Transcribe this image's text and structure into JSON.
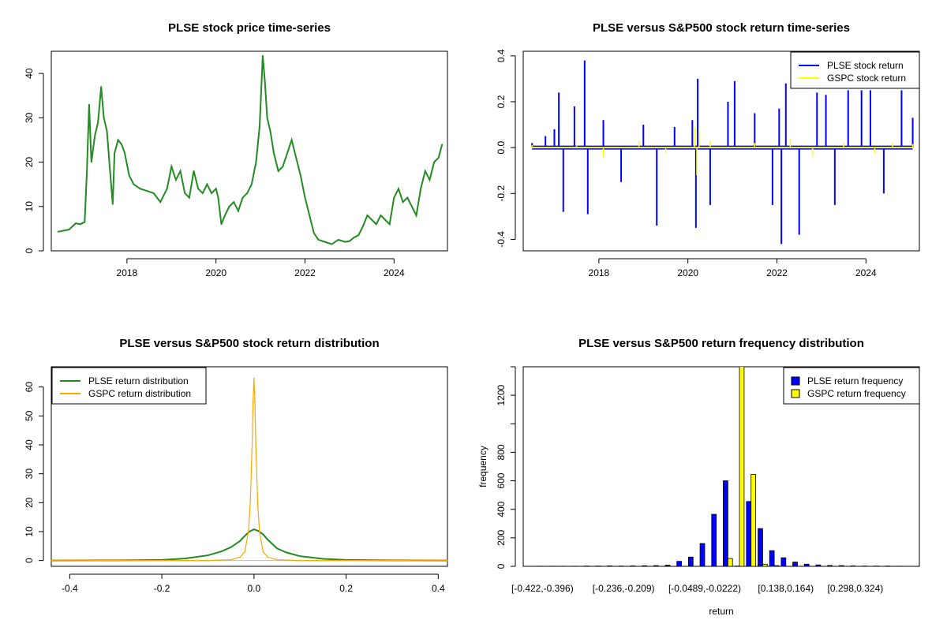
{
  "colors": {
    "price_line": "#228B22",
    "plse": "#0000FF",
    "gspc": "#FFFF00",
    "gspc_density": "#FFA500",
    "plse_density": "#228B22",
    "axis": "#000000"
  },
  "chart_data": [
    {
      "type": "line",
      "title": "PLSE stock price time-series",
      "xlabel": "",
      "ylabel": "",
      "xlim": [
        2016.3,
        2025.2
      ],
      "ylim": [
        0,
        45
      ],
      "x_ticks": [
        2018,
        2020,
        2022,
        2024
      ],
      "x_tick_labels": [
        "2018",
        "2020",
        "2022",
        "2024"
      ],
      "y_ticks": [
        0,
        10,
        20,
        30,
        40
      ],
      "y_tick_labels": [
        "0",
        "10",
        "20",
        "30",
        "40"
      ],
      "series": [
        {
          "color": "#228B22",
          "x": [
            2016.45,
            2016.7,
            2016.85,
            2016.95,
            2017.05,
            2017.1,
            2017.15,
            2017.2,
            2017.28,
            2017.35,
            2017.42,
            2017.48,
            2017.55,
            2017.62,
            2017.68,
            2017.72,
            2017.8,
            2017.88,
            2017.95,
            2018.05,
            2018.15,
            2018.3,
            2018.45,
            2018.6,
            2018.75,
            2018.9,
            2019.0,
            2019.1,
            2019.2,
            2019.3,
            2019.4,
            2019.5,
            2019.6,
            2019.7,
            2019.8,
            2019.9,
            2020.0,
            2020.05,
            2020.12,
            2020.2,
            2020.3,
            2020.4,
            2020.5,
            2020.6,
            2020.7,
            2020.8,
            2020.9,
            2020.98,
            2021.05,
            2021.1,
            2021.15,
            2021.22,
            2021.3,
            2021.4,
            2021.5,
            2021.6,
            2021.7,
            2021.8,
            2021.9,
            2022.0,
            2022.1,
            2022.2,
            2022.3,
            2022.45,
            2022.6,
            2022.75,
            2022.9,
            2023.0,
            2023.1,
            2023.2,
            2023.3,
            2023.4,
            2023.5,
            2023.6,
            2023.7,
            2023.8,
            2023.9,
            2024.0,
            2024.1,
            2024.2,
            2024.3,
            2024.4,
            2024.5,
            2024.6,
            2024.7,
            2024.8,
            2024.9,
            2025.0,
            2025.08
          ],
          "y": [
            4.3,
            4.8,
            6.2,
            6.0,
            6.5,
            18,
            33,
            20,
            26,
            29,
            37,
            30,
            27,
            18,
            10.5,
            22,
            25,
            24,
            22,
            17,
            15,
            14,
            13.5,
            13,
            11,
            14,
            19,
            16,
            18,
            13,
            12,
            18,
            14,
            13,
            15,
            13,
            14,
            12,
            6,
            8,
            10,
            11,
            9,
            12,
            13,
            15,
            20,
            28,
            44,
            38,
            30,
            27,
            22,
            18,
            19,
            22,
            25,
            21,
            17,
            12,
            8,
            4,
            2.5,
            2.0,
            1.5,
            2.5,
            2.0,
            2.2,
            3.0,
            3.5,
            5.5,
            8,
            7,
            6,
            8,
            7,
            6,
            12,
            14,
            11,
            12,
            10,
            8,
            14,
            18,
            16,
            20,
            21,
            24
          ]
        }
      ]
    },
    {
      "type": "line",
      "title": "PLSE versus S&P500 stock return time-series",
      "xlabel": "",
      "ylabel": "",
      "xlim": [
        2016.3,
        2025.2
      ],
      "ylim": [
        -0.45,
        0.42
      ],
      "x_ticks": [
        2018,
        2020,
        2022,
        2024
      ],
      "x_tick_labels": [
        "2018",
        "2020",
        "2022",
        "2024"
      ],
      "y_ticks": [
        -0.4,
        -0.2,
        0.0,
        0.2,
        0.4
      ],
      "y_tick_labels": [
        "-0.4",
        "-0.2",
        "0.0",
        "0.2",
        "0.4"
      ],
      "legend": "top-right",
      "series": [
        {
          "name": "PLSE stock return",
          "color": "#0000FF",
          "x": [
            2016.5,
            2016.8,
            2017.0,
            2017.1,
            2017.2,
            2017.45,
            2017.68,
            2017.75,
            2018.1,
            2018.5,
            2019.0,
            2019.3,
            2019.7,
            2020.1,
            2020.18,
            2020.22,
            2020.5,
            2020.9,
            2021.05,
            2021.5,
            2021.9,
            2022.05,
            2022.1,
            2022.2,
            2022.5,
            2022.9,
            2023.1,
            2023.3,
            2023.6,
            2023.9,
            2024.1,
            2024.4,
            2024.8,
            2025.05
          ],
          "y": [
            0.02,
            0.05,
            0.08,
            0.24,
            -0.28,
            0.18,
            0.38,
            -0.29,
            0.12,
            -0.15,
            0.1,
            -0.34,
            0.09,
            0.12,
            -0.35,
            0.3,
            -0.25,
            0.2,
            0.29,
            0.15,
            -0.25,
            0.17,
            -0.42,
            0.28,
            -0.38,
            0.24,
            0.23,
            -0.25,
            0.25,
            0.25,
            0.25,
            -0.2,
            0.25,
            0.13
          ]
        },
        {
          "name": "GSPC stock return",
          "color": "#FFFF00",
          "x": [
            2016.5,
            2017.5,
            2018.1,
            2018.9,
            2019.5,
            2020.15,
            2020.2,
            2020.25,
            2020.5,
            2021.5,
            2022.3,
            2022.8,
            2023.5,
            2024.2,
            2024.6,
            2025.05
          ],
          "y": [
            0.01,
            0.008,
            -0.04,
            0.03,
            -0.025,
            0.09,
            -0.12,
            0.07,
            0.03,
            0.02,
            0.04,
            -0.04,
            0.02,
            -0.02,
            0.02,
            0.015
          ]
        }
      ]
    },
    {
      "type": "line",
      "title": "PLSE versus S&P500 stock return distribution",
      "xlabel": "",
      "ylabel": "",
      "xlim": [
        -0.44,
        0.42
      ],
      "ylim": [
        -2,
        67
      ],
      "x_ticks": [
        -0.4,
        -0.2,
        0.0,
        0.2,
        0.4
      ],
      "x_tick_labels": [
        "-0.4",
        "-0.2",
        "0.0",
        "0.2",
        "0.4"
      ],
      "y_ticks": [
        0,
        10,
        20,
        30,
        40,
        50,
        60
      ],
      "y_tick_labels": [
        "0",
        "10",
        "20",
        "30",
        "40",
        "50",
        "60"
      ],
      "legend": "top-left",
      "series": [
        {
          "name": "PLSE return distribution",
          "color": "#228B22",
          "x": [
            -0.44,
            -0.3,
            -0.2,
            -0.15,
            -0.1,
            -0.07,
            -0.05,
            -0.03,
            -0.02,
            -0.01,
            0.0,
            0.01,
            0.02,
            0.03,
            0.05,
            0.07,
            0.1,
            0.15,
            0.2,
            0.3,
            0.42
          ],
          "y": [
            0,
            0.05,
            0.2,
            0.7,
            1.8,
            3.2,
            4.6,
            6.8,
            8.5,
            10.0,
            10.8,
            10.2,
            9.0,
            7.2,
            4.2,
            2.8,
            1.5,
            0.6,
            0.2,
            0.05,
            0
          ]
        },
        {
          "name": "GSPC return distribution",
          "color": "#FFA500",
          "x": [
            -0.44,
            -0.1,
            -0.05,
            -0.03,
            -0.02,
            -0.012,
            -0.008,
            -0.004,
            -0.002,
            0.0,
            0.002,
            0.004,
            0.008,
            0.012,
            0.02,
            0.03,
            0.05,
            0.1,
            0.42
          ],
          "y": [
            0,
            0.02,
            0.3,
            1.2,
            3.0,
            10,
            20,
            40,
            55,
            63,
            55,
            40,
            20,
            10,
            3.0,
            1.2,
            0.3,
            0.02,
            0
          ]
        }
      ]
    },
    {
      "type": "bar",
      "title": "PLSE versus S&P500 return frequency distribution",
      "xlabel": "return",
      "ylabel": "frequency",
      "ylim": [
        0,
        1400
      ],
      "y_ticks": [
        0,
        200,
        400,
        600,
        800,
        1200
      ],
      "y_tick_labels": [
        "0",
        "200",
        "400",
        "600",
        "800",
        "1200"
      ],
      "x_tick_labels": [
        "[-0.422,-0.396)",
        "[-0.236,-0.209)",
        "[-0.0489,-0.0222)",
        "[0.138,0.164)",
        "[0.298,0.324)"
      ],
      "x_tick_bins": [
        0,
        7,
        14,
        21,
        27
      ],
      "legend": "top-right",
      "series": [
        {
          "name": "PLSE return frequency",
          "color": "#0000FF",
          "values": [
            1,
            1,
            1,
            1,
            2,
            2,
            3,
            2,
            3,
            4,
            5,
            8,
            35,
            65,
            160,
            365,
            600,
            2,
            455,
            265,
            110,
            60,
            30,
            15,
            10,
            6,
            5,
            3,
            2,
            2,
            2,
            1
          ]
        },
        {
          "name": "GSPC return frequency",
          "color": "#FFFF00",
          "values": [
            0,
            0,
            0,
            0,
            0,
            0,
            0,
            0,
            0,
            0,
            0,
            0,
            0,
            0,
            0,
            0,
            55,
            1450,
            645,
            15,
            5,
            0,
            0,
            0,
            0,
            0,
            0,
            0,
            0,
            0,
            0,
            0
          ]
        }
      ]
    }
  ]
}
